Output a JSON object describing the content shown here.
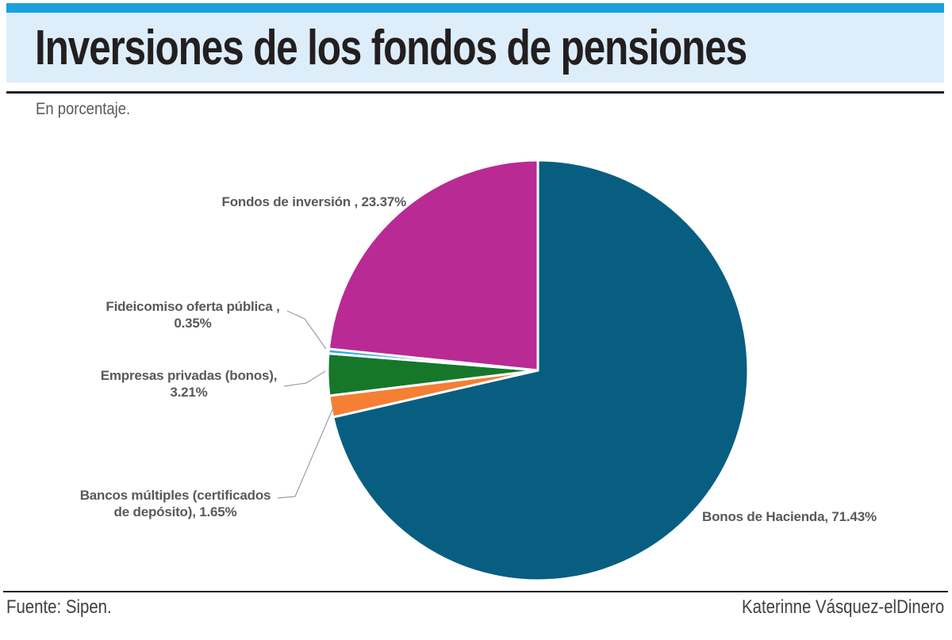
{
  "header": {
    "title": "Inversiones de los fondos de pensiones"
  },
  "subtitle": "En porcentaje.",
  "footer": {
    "source": "Fuente: Sipen.",
    "credit": "Katerinne Vásquez-elDinero"
  },
  "colors": {
    "top_bar": "#1aa0dc",
    "banner_bg": "#ddeefa",
    "rule": "#231f20",
    "label_text": "#58595b",
    "leader_line": "#9aa0a4",
    "slice_separator": "#ffffff"
  },
  "chart_data": {
    "type": "pie",
    "title": "Inversiones de los fondos de pensiones",
    "subtitle": "En porcentaje.",
    "start_angle_deg": 0,
    "direction": "clockwise",
    "legend_position": "none",
    "slices": [
      {
        "label": "Bonos de Hacienda",
        "value": 71.43,
        "color": "#085e81"
      },
      {
        "label": "Bancos múltiples (certificados de depósito)",
        "value": 1.65,
        "color": "#f47f35"
      },
      {
        "label": "Empresas privadas (bonos)",
        "value": 3.21,
        "color": "#16772b"
      },
      {
        "label": "Fideicomiso oferta pública",
        "value": 0.35,
        "color": "#2aaee5"
      },
      {
        "label": "Fondos de inversión",
        "value": 23.37,
        "color": "#b92a94"
      }
    ],
    "annotations": {
      "fondos": "Fondos de inversión , 23.37%",
      "fideicomiso": "Fideicomiso oferta pública ,\n0.35%",
      "empresas": "Empresas privadas (bonos),\n3.21%",
      "bancos": "Bancos múltiples (certificados\nde depósito), 1.65%",
      "bonos": "Bonos de Hacienda, 71.43%"
    }
  }
}
